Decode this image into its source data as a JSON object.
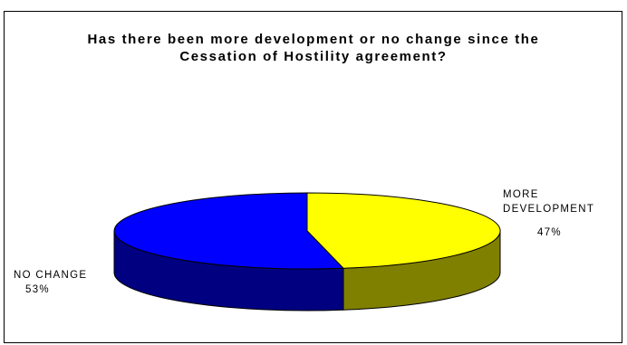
{
  "chart_data": {
    "type": "pie",
    "title": "Has there been more development or no change since the Cessation of Hostility agreement?",
    "title_lines": [
      "Has there been more development or no change since the",
      "Cessation of Hostility agreement?"
    ],
    "style": "3d",
    "legend": "none",
    "slices": [
      {
        "label_lines": [
          "MORE",
          "DEVELOPMENT"
        ],
        "value": 47,
        "value_label": "47%",
        "top_color": "#ffff00",
        "side_color": "#808000"
      },
      {
        "label_lines": [
          "NO CHANGE"
        ],
        "value": 53,
        "value_label": "53%",
        "top_color": "#0000ff",
        "side_color": "#000080"
      }
    ]
  }
}
